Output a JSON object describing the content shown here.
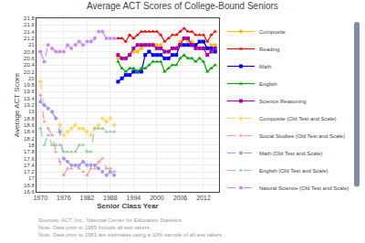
{
  "chart_data": {
    "type": "line",
    "title": "Average ACT Scores of College-Bound Seniors",
    "xlabel": "Senior Class Year",
    "ylabel": "Average ACT Score",
    "x": [
      1970,
      1971,
      1972,
      1973,
      1974,
      1975,
      1976,
      1977,
      1978,
      1979,
      1980,
      1981,
      1982,
      1983,
      1984,
      1985,
      1986,
      1987,
      1988,
      1989,
      1990,
      1991,
      1992,
      1993,
      1994,
      1995,
      1996,
      1997,
      1998,
      1999,
      2000,
      2001,
      2002,
      2003,
      2004,
      2005,
      2006,
      2007,
      2008,
      2009,
      2010,
      2011,
      2012,
      2013,
      2014,
      2015
    ],
    "xlim": [
      1969,
      2016
    ],
    "xticks": [
      1970,
      1976,
      1982,
      1988,
      1994,
      2000,
      2006,
      2012
    ],
    "ylim": [
      16.6,
      21.8
    ],
    "yticks": [
      16.6,
      16.8,
      17,
      17.2,
      17.4,
      17.6,
      17.8,
      18,
      18.2,
      18.4,
      18.6,
      18.8,
      19,
      19.2,
      19.4,
      19.6,
      19.8,
      20,
      20.2,
      20.4,
      20.6,
      20.8,
      21,
      21.2,
      21.4,
      21.6,
      21.8
    ],
    "grid": true,
    "legend": "right",
    "annotations": [
      "Sources: ACT, Inc.; National Center for Education Statistics",
      "Note: Data prior to 1985 include all test takers.",
      "Note: Data prior to 1981 are estimates using a 10% sample of all test takers."
    ],
    "series": [
      {
        "name": "Composite",
        "color": "#FFC000",
        "marker": "diamond",
        "line_style": "solid",
        "values": [
          null,
          null,
          null,
          null,
          null,
          null,
          null,
          null,
          null,
          null,
          null,
          null,
          null,
          null,
          null,
          null,
          null,
          null,
          null,
          null,
          20.6,
          20.6,
          20.6,
          20.7,
          20.8,
          20.8,
          20.9,
          21.0,
          21.0,
          21.0,
          21.0,
          21.0,
          20.8,
          20.8,
          20.9,
          20.9,
          21.1,
          21.2,
          21.1,
          21.1,
          21.0,
          21.1,
          21.1,
          20.9,
          21.0,
          21.0
        ]
      },
      {
        "name": "Reading",
        "color": "#FF0000",
        "marker": "triangle",
        "line_style": "solid",
        "values": [
          null,
          null,
          null,
          null,
          null,
          null,
          null,
          null,
          null,
          null,
          null,
          null,
          null,
          null,
          null,
          null,
          null,
          null,
          null,
          null,
          21.2,
          21.2,
          21.1,
          21.3,
          21.2,
          21.3,
          21.4,
          21.4,
          21.4,
          21.4,
          21.4,
          21.3,
          21.1,
          21.2,
          21.3,
          21.3,
          21.4,
          21.5,
          21.4,
          21.4,
          21.3,
          21.3,
          21.3,
          21.1,
          21.3,
          21.4
        ]
      },
      {
        "name": "Math",
        "color": "#0000FF",
        "marker": "square",
        "line_style": "solid",
        "values": [
          null,
          null,
          null,
          null,
          null,
          null,
          null,
          null,
          null,
          null,
          null,
          null,
          null,
          null,
          null,
          null,
          null,
          null,
          null,
          null,
          19.9,
          20.0,
          20.1,
          20.1,
          20.2,
          20.2,
          20.2,
          20.7,
          20.8,
          20.7,
          20.7,
          20.7,
          20.6,
          20.6,
          20.7,
          20.7,
          21.0,
          21.0,
          21.0,
          21.0,
          21.0,
          21.1,
          21.1,
          20.9,
          20.9,
          20.8
        ]
      },
      {
        "name": "English",
        "color": "#00AA00",
        "marker": "triangle",
        "line_style": "solid",
        "values": [
          null,
          null,
          null,
          null,
          null,
          null,
          null,
          null,
          null,
          null,
          null,
          null,
          null,
          null,
          null,
          null,
          null,
          null,
          null,
          null,
          20.5,
          20.3,
          20.2,
          20.3,
          20.3,
          20.2,
          20.3,
          20.3,
          20.4,
          20.5,
          20.5,
          20.5,
          20.2,
          20.3,
          20.4,
          20.4,
          20.6,
          20.7,
          20.6,
          20.6,
          20.5,
          20.6,
          20.5,
          20.2,
          20.3,
          20.4
        ]
      },
      {
        "name": "Science Reasoning",
        "color": "#AA00AA",
        "marker": "square",
        "line_style": "solid",
        "values": [
          null,
          null,
          null,
          null,
          null,
          null,
          null,
          null,
          null,
          null,
          null,
          null,
          null,
          null,
          null,
          null,
          null,
          null,
          null,
          null,
          20.7,
          20.6,
          20.6,
          20.7,
          20.9,
          21.0,
          21.0,
          21.0,
          21.0,
          21.0,
          20.9,
          20.9,
          20.8,
          20.8,
          20.9,
          20.9,
          21.0,
          21.2,
          21.2,
          21.0,
          20.9,
          20.9,
          20.9,
          20.7,
          20.8,
          20.9
        ]
      },
      {
        "name": "Composite (Old Test and Scale)",
        "color": "#FFD966",
        "marker": "diamond",
        "line_style": "dashed",
        "values": [
          19.9,
          19.2,
          19.1,
          19.0,
          18.8,
          18.6,
          18.3,
          18.4,
          18.5,
          18.6,
          18.5,
          18.5,
          18.4,
          18.3,
          18.5,
          18.6,
          18.8,
          18.7,
          18.8,
          18.6,
          null,
          null,
          null,
          null,
          null,
          null,
          null,
          null,
          null,
          null,
          null,
          null,
          null,
          null,
          null,
          null,
          null,
          null,
          null,
          null,
          null,
          null,
          null,
          null,
          null,
          null
        ]
      },
      {
        "name": "Social Studies (Old Test and Scale)",
        "color": "#FF9999",
        "marker": "triangle",
        "line_style": "dashed",
        "values": [
          19.5,
          18.7,
          18.5,
          18.3,
          17.8,
          17.5,
          17.1,
          17.3,
          17.3,
          17.4,
          17.3,
          17.2,
          17.1,
          17.3,
          17.3,
          17.5,
          17.6,
          17.3,
          17.3,
          17.2,
          null,
          null,
          null,
          null,
          null,
          null,
          null,
          null,
          null,
          null,
          null,
          null,
          null,
          null,
          null,
          null,
          null,
          null,
          null,
          null,
          null,
          null,
          null,
          null,
          null,
          null
        ]
      },
      {
        "name": "Math (Old Test and Scale)",
        "color": "#9999FF",
        "marker": "circle",
        "line_style": "dashed",
        "values": [
          19.3,
          19.2,
          19.1,
          19.0,
          18.8,
          18.4,
          17.6,
          17.5,
          17.4,
          17.4,
          17.4,
          17.5,
          17.4,
          17.4,
          17.4,
          17.3,
          17.2,
          17.1,
          17.2,
          17.1,
          null,
          null,
          null,
          null,
          null,
          null,
          null,
          null,
          null,
          null,
          null,
          null,
          null,
          null,
          null,
          null,
          null,
          null,
          null,
          null,
          null,
          null,
          null,
          null,
          null,
          null
        ]
      },
      {
        "name": "English (Old Test and Scale)",
        "color": "#99CC99",
        "marker": "triangle",
        "line_style": "dashed",
        "values": [
          18.5,
          18.0,
          18.3,
          18.0,
          18.0,
          18.0,
          17.8,
          17.8,
          17.8,
          17.8,
          18.0,
          18.0,
          17.8,
          17.8,
          18.5,
          18.5,
          18.5,
          18.4,
          18.4,
          18.4,
          null,
          null,
          null,
          null,
          null,
          null,
          null,
          null,
          null,
          null,
          null,
          null,
          null,
          null,
          null,
          null,
          null,
          null,
          null,
          null,
          null,
          null,
          null,
          null,
          null,
          null
        ]
      },
      {
        "name": "Natural Science (Old Test and Scale)",
        "color": "#CC88FF",
        "marker": "circle",
        "line_style": "dashed",
        "values": [
          20.8,
          20.5,
          21.0,
          20.9,
          20.8,
          20.8,
          20.8,
          21.0,
          20.9,
          21.0,
          21.1,
          21.0,
          21.1,
          21.1,
          21.2,
          21.4,
          21.4,
          21.2,
          21.2,
          21.2,
          null,
          null,
          null,
          null,
          null,
          null,
          null,
          null,
          null,
          null,
          null,
          null,
          null,
          null,
          null,
          null,
          null,
          null,
          null,
          null,
          null,
          null,
          null,
          null,
          null,
          null
        ]
      }
    ]
  }
}
